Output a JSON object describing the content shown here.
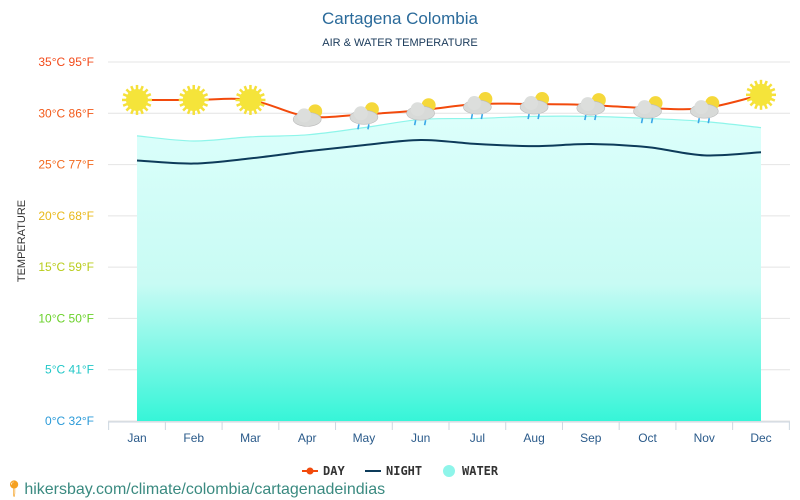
{
  "chart_data": {
    "type": "line",
    "title": "Cartagena Colombia",
    "subtitle": "AIR & WATER TEMPERATURE",
    "ylabel": "TEMPERATURE",
    "ylim": [
      0,
      35
    ],
    "grid": true,
    "legend_placement": "bottom",
    "categories": [
      "Jan",
      "Feb",
      "Mar",
      "Apr",
      "May",
      "Jun",
      "Jul",
      "Aug",
      "Sep",
      "Oct",
      "Nov",
      "Dec"
    ],
    "yticks": [
      {
        "c": 0,
        "label": "0°C 32°F",
        "color": "#2a9ad8"
      },
      {
        "c": 5,
        "label": "5°C 41°F",
        "color": "#22c7c7"
      },
      {
        "c": 10,
        "label": "10°C 50°F",
        "color": "#6ad12a"
      },
      {
        "c": 15,
        "label": "15°C 59°F",
        "color": "#b8cc1a"
      },
      {
        "c": 20,
        "label": "20°C 68°F",
        "color": "#e8b81a"
      },
      {
        "c": 25,
        "label": "25°C 77°F",
        "color": "#f26a1f"
      },
      {
        "c": 30,
        "label": "30°C 86°F",
        "color": "#f25a1a"
      },
      {
        "c": 35,
        "label": "35°C 95°F",
        "color": "#f24a1a"
      }
    ],
    "series": [
      {
        "name": "DAY",
        "color": "#f24a0c",
        "values": [
          31.3,
          31.3,
          31.3,
          29.7,
          29.9,
          30.3,
          30.9,
          30.9,
          30.8,
          30.5,
          30.5,
          31.8
        ]
      },
      {
        "name": "NIGHT",
        "color": "#0d3b5a",
        "values": [
          25.4,
          25.1,
          25.6,
          26.3,
          26.9,
          27.4,
          27.0,
          26.8,
          27.0,
          26.7,
          25.9,
          26.2
        ]
      },
      {
        "name": "WATER",
        "color": "#8ef5ea",
        "values": [
          27.8,
          27.3,
          27.7,
          27.9,
          28.6,
          29.4,
          29.5,
          29.7,
          29.7,
          29.5,
          29.2,
          28.6
        ]
      }
    ],
    "weather_icons": [
      "sun",
      "sun",
      "sun",
      "sun-cloud",
      "sun-cloud-rain",
      "sun-cloud-rain",
      "sun-cloud-rain",
      "sun-cloud-rain",
      "sun-cloud-rain",
      "sun-cloud-rain",
      "sun-cloud-rain",
      "sun"
    ]
  },
  "footer": {
    "link": "hikersbay.com/climate/colombia/cartagenadeindias",
    "icon": "location-pin-icon"
  }
}
